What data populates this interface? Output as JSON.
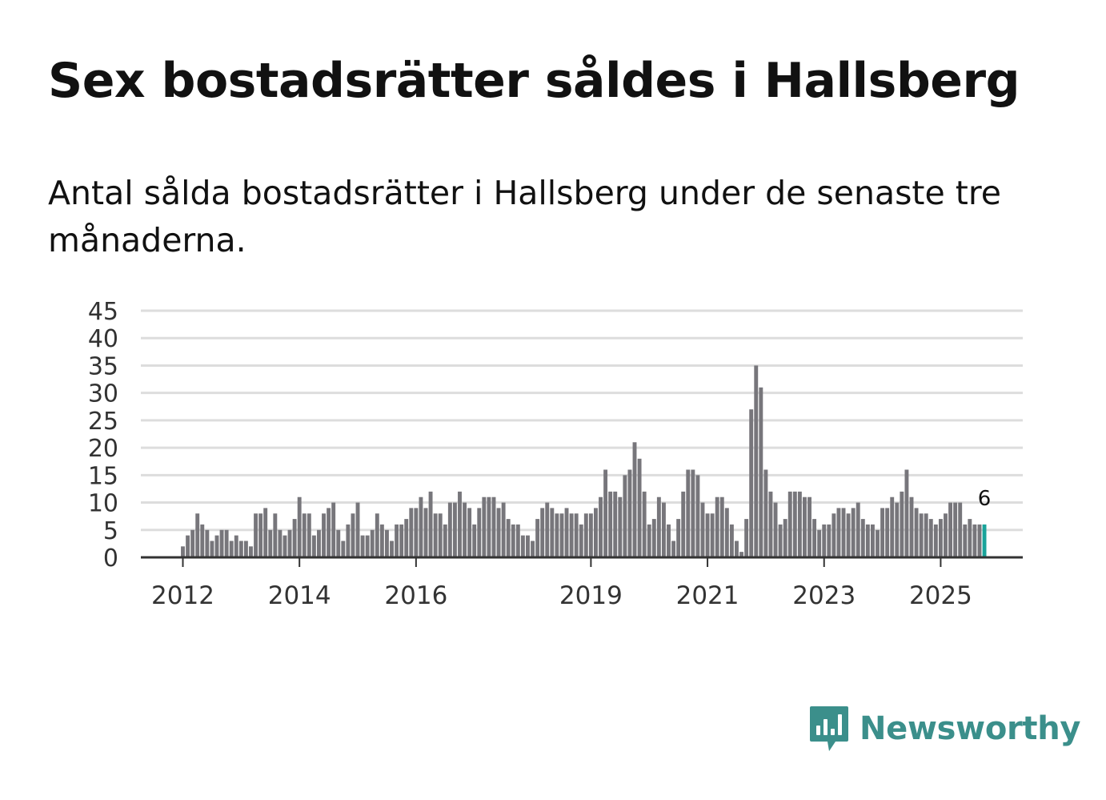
{
  "title": "Sex bostadsrätter såldes i Hallsberg",
  "subtitle": "Antal sålda bostadsrätter i Hallsberg under de senaste tre månaderna.",
  "brand": {
    "name": "Newsworthy",
    "color": "#3b8f8b",
    "icon": "newsworthy-bar-chart-icon"
  },
  "colors": {
    "bar": "#77767b",
    "highlight": "#1aa39a",
    "grid": "#dddddd",
    "axis": "#333333"
  },
  "chart_data": {
    "type": "bar",
    "title": "Sex bostadsrätter såldes i Hallsberg",
    "xlabel": "",
    "ylabel": "",
    "ylim": [
      0,
      45
    ],
    "yticks": [
      0,
      5,
      10,
      15,
      20,
      25,
      30,
      35,
      40,
      45
    ],
    "xtick_labels": [
      {
        "label": "2012",
        "index": 0
      },
      {
        "label": "2014",
        "index": 24
      },
      {
        "label": "2016",
        "index": 48
      },
      {
        "label": "2019",
        "index": 84
      },
      {
        "label": "2021",
        "index": 108
      },
      {
        "label": "2023",
        "index": 132
      },
      {
        "label": "2025",
        "index": 156
      }
    ],
    "highlight_label": "6",
    "values": [
      2,
      4,
      5,
      8,
      6,
      5,
      3,
      4,
      5,
      5,
      3,
      4,
      3,
      3,
      2,
      8,
      8,
      9,
      5,
      8,
      5,
      4,
      5,
      7,
      11,
      8,
      8,
      4,
      5,
      8,
      9,
      10,
      5,
      3,
      6,
      8,
      10,
      4,
      4,
      5,
      8,
      6,
      5,
      3,
      6,
      6,
      7,
      9,
      9,
      11,
      9,
      12,
      8,
      8,
      6,
      10,
      10,
      12,
      10,
      9,
      6,
      9,
      11,
      11,
      11,
      9,
      10,
      7,
      6,
      6,
      4,
      4,
      3,
      7,
      9,
      10,
      9,
      8,
      8,
      9,
      8,
      8,
      6,
      8,
      8,
      9,
      11,
      16,
      12,
      12,
      11,
      15,
      16,
      21,
      18,
      12,
      6,
      7,
      11,
      10,
      6,
      3,
      7,
      12,
      16,
      16,
      15,
      10,
      8,
      8,
      11,
      11,
      9,
      6,
      3,
      1,
      7,
      27,
      35,
      31,
      16,
      12,
      10,
      6,
      7,
      12,
      12,
      12,
      11,
      11,
      7,
      5,
      6,
      6,
      8,
      9,
      9,
      8,
      9,
      10,
      7,
      6,
      6,
      5,
      9,
      9,
      11,
      10,
      12,
      16,
      11,
      9,
      8,
      8,
      7,
      6,
      7,
      8,
      10,
      10,
      10,
      6,
      7,
      6,
      6,
      6
    ]
  }
}
